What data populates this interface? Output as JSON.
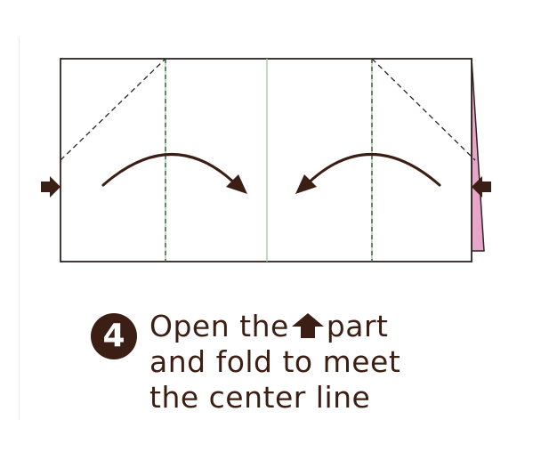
{
  "step": {
    "number": "4",
    "line1_before": "Open the",
    "line1_after": "part",
    "line2": "and fold to meet",
    "line3": "the center line",
    "inline_icon": "up-arrow-icon"
  },
  "colors": {
    "ink": "#3b1f14",
    "paper_edge": "#2d2320",
    "pink_layer": "#e6a5c9",
    "crease_dash": "#4a7a58",
    "center_line": "#a9d4a6"
  },
  "icons": {
    "left_arrow": "arrow-right-icon",
    "right_arrow": "arrow-left-icon",
    "fold_left": "curved-arrow-right-icon",
    "fold_right": "curved-arrow-left-icon"
  }
}
